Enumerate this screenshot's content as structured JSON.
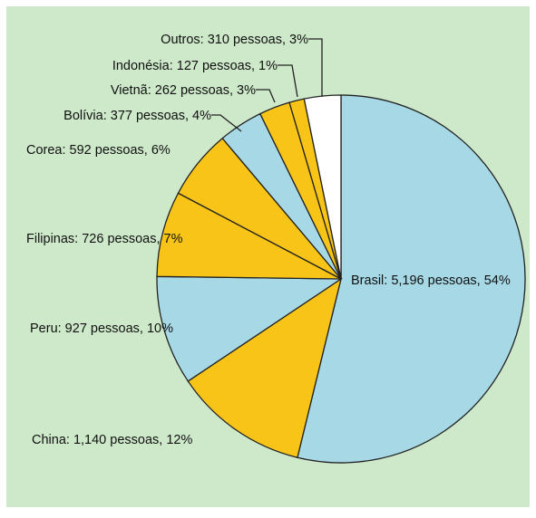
{
  "chart_data": {
    "type": "pie",
    "title": "",
    "start": "top, clockwise",
    "slices": [
      {
        "name": "Brasil",
        "value": 5196,
        "percent": 54,
        "label": "Brasil: 5,196 pessoas, 54%",
        "color": "#a6d8e6"
      },
      {
        "name": "China",
        "value": 1140,
        "percent": 12,
        "label": "China: 1,140 pessoas, 12%",
        "color": "#f8c417"
      },
      {
        "name": "Peru",
        "value": 927,
        "percent": 10,
        "label": "Peru: 927 pessoas, 10%",
        "color": "#a6d8e6"
      },
      {
        "name": "Filipinas",
        "value": 726,
        "percent": 7,
        "label": "Filipinas: 726 pessoas, 7%",
        "color": "#f8c417"
      },
      {
        "name": "Corea",
        "value": 592,
        "percent": 6,
        "label": "Corea: 592 pessoas, 6%",
        "color": "#f8c417"
      },
      {
        "name": "Bolívia",
        "value": 377,
        "percent": 4,
        "label": "Bolívia: 377 pessoas, 4%",
        "color": "#a6d8e6"
      },
      {
        "name": "Vietnã",
        "value": 262,
        "percent": 3,
        "label": "Vietnã: 262 pessoas, 3%",
        "color": "#f8c417"
      },
      {
        "name": "Indonésia",
        "value": 127,
        "percent": 1,
        "label": "Indonésia: 127 pessoas, 1%",
        "color": "#f8c417"
      },
      {
        "name": "Outros",
        "value": 310,
        "percent": 3,
        "label": "Outros: 310 pessoas, 3%",
        "color": "#ffffff"
      }
    ]
  },
  "colors": {
    "background": "#cde9c9",
    "stroke": "#222222"
  }
}
